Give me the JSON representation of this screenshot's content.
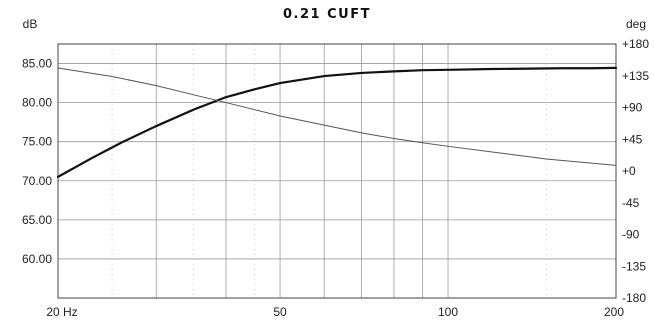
{
  "chart_data": {
    "type": "line",
    "title": "0.21 CUFT",
    "left_unit": "dB",
    "right_unit": "deg",
    "x_scale": "log",
    "xlim": [
      20,
      200
    ],
    "ylim_left": [
      55,
      87.5
    ],
    "ylim_right": [
      -180,
      180
    ],
    "x_ticks": [
      {
        "value": 20,
        "label": "20 Hz"
      },
      {
        "value": 50,
        "label": "50"
      },
      {
        "value": 100,
        "label": "100"
      },
      {
        "value": 200,
        "label": "200"
      }
    ],
    "y_ticks_left": [
      {
        "value": 85,
        "label": "85.00"
      },
      {
        "value": 80,
        "label": "80.00"
      },
      {
        "value": 75,
        "label": "75.00"
      },
      {
        "value": 70,
        "label": "70.00"
      },
      {
        "value": 65,
        "label": "65.00"
      },
      {
        "value": 60,
        "label": "60.00"
      }
    ],
    "y_ticks_right": [
      {
        "value": 180,
        "label": "+180"
      },
      {
        "value": 135,
        "label": "+135"
      },
      {
        "value": 90,
        "label": "+90"
      },
      {
        "value": 45,
        "label": "+45"
      },
      {
        "value": 0,
        "label": "+0"
      },
      {
        "value": -45,
        "label": "-45"
      },
      {
        "value": -90,
        "label": "-90"
      },
      {
        "value": -135,
        "label": "-135"
      },
      {
        "value": -180,
        "label": "-180"
      }
    ],
    "grid": true,
    "series": [
      {
        "axis": "left",
        "x": [
          20,
          23,
          26,
          30,
          35,
          40,
          45,
          50,
          60,
          70,
          80,
          90,
          100,
          120,
          140,
          160,
          180,
          200
        ],
        "y": [
          70.5,
          72.9,
          74.9,
          77.0,
          79.1,
          80.7,
          81.7,
          82.5,
          83.4,
          83.8,
          84.0,
          84.15,
          84.2,
          84.3,
          84.35,
          84.4,
          84.4,
          84.45
        ]
      },
      {
        "axis": "right",
        "x": [
          20,
          25,
          30,
          35,
          40,
          50,
          60,
          70,
          80,
          90,
          100,
          120,
          150,
          200
        ],
        "y": [
          146,
          134,
          121,
          108,
          97,
          78,
          65,
          54,
          46,
          40,
          35,
          27,
          17,
          8
        ]
      }
    ]
  }
}
